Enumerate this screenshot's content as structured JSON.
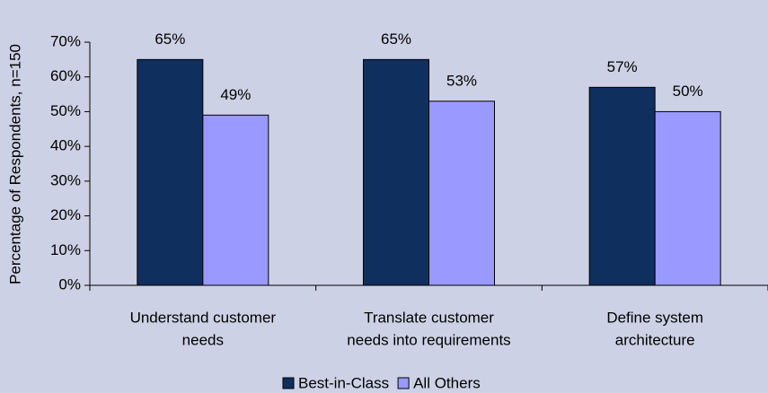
{
  "chart_data": {
    "type": "bar",
    "ylabel": "Percentage of Respondents, n=150",
    "categories": [
      [
        "Understand customer",
        "needs"
      ],
      [
        "Translate customer",
        "needs into requirements"
      ],
      [
        "Define system",
        "architecture"
      ]
    ],
    "series": [
      {
        "name": "Best-in-Class",
        "color": "#0f2f5f",
        "values": [
          65,
          65,
          57
        ],
        "value_labels": [
          "65%",
          "65%",
          "57%"
        ]
      },
      {
        "name": "All Others",
        "color": "#9999ff",
        "values": [
          49,
          53,
          50
        ],
        "value_labels": [
          "49%",
          "53%",
          "50%"
        ]
      }
    ],
    "ylim": [
      0,
      70
    ],
    "yticks": [
      {
        "value": 0,
        "label": "0%"
      },
      {
        "value": 10,
        "label": "10%"
      },
      {
        "value": 20,
        "label": "20%"
      },
      {
        "value": 30,
        "label": "30%"
      },
      {
        "value": 40,
        "label": "40%"
      },
      {
        "value": 50,
        "label": "50%"
      },
      {
        "value": 60,
        "label": "60%"
      },
      {
        "value": 70,
        "label": "70%"
      }
    ],
    "grid": false,
    "legend": "bottom"
  }
}
